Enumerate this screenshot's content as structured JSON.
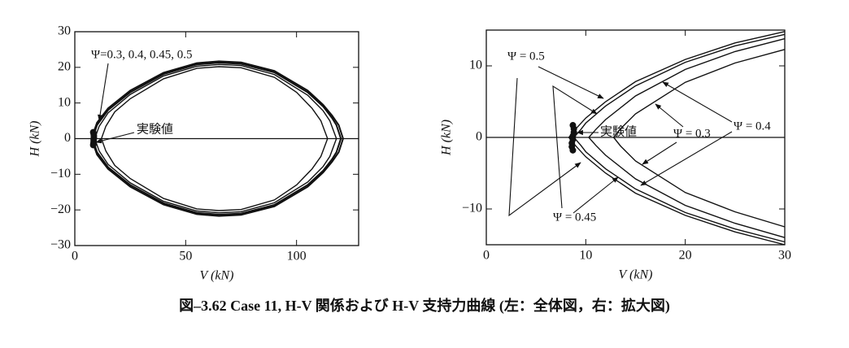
{
  "chart_data": [
    {
      "type": "line",
      "x_label": "V (kN)",
      "y_label": "H (kN)",
      "xlim": [
        0,
        128
      ],
      "xticks": [
        0,
        50,
        100
      ],
      "ylim": [
        -30,
        30
      ],
      "yticks": [
        {
          "value": -30,
          "label": "−30"
        },
        {
          "value": -20,
          "label": "−20"
        },
        {
          "value": -10,
          "label": "−10"
        },
        0,
        10,
        20,
        30
      ],
      "zero_line": true,
      "series": [
        {
          "color": "#111111",
          "x": [
            7.5,
            10,
            15,
            25,
            40,
            55,
            65,
            75,
            90,
            105,
            112,
            116,
            119,
            121,
            119,
            116,
            112,
            105,
            90,
            75,
            65,
            55,
            40,
            25,
            15,
            10,
            7.5
          ],
          "values": [
            0,
            4.5,
            8.5,
            13.5,
            18.5,
            21.2,
            21.7,
            21.4,
            19,
            13.5,
            9.5,
            6.5,
            3.8,
            0,
            -3.8,
            -6.5,
            -9.5,
            -13.5,
            -19,
            -21.4,
            -21.7,
            -21.2,
            -18.5,
            -13.5,
            -8.5,
            -4.5,
            0
          ]
        },
        {
          "color": "#111111",
          "x": [
            8,
            10,
            15,
            25,
            40,
            55,
            65,
            75,
            90,
            105,
            112,
            116,
            118,
            120,
            118,
            116,
            112,
            105,
            90,
            75,
            65,
            55,
            40,
            25,
            15,
            10,
            8
          ],
          "values": [
            0,
            3.8,
            8,
            13,
            18.1,
            20.8,
            21.3,
            21,
            18.6,
            13,
            9,
            5.8,
            3.8,
            0,
            -3.8,
            -5.8,
            -9,
            -13,
            -18.6,
            -21,
            -21.3,
            -20.8,
            -18.1,
            -13,
            -8,
            -3.8,
            0
          ]
        },
        {
          "color": "#111111",
          "x": [
            9,
            11,
            15,
            25,
            40,
            55,
            65,
            75,
            90,
            105,
            112,
            115,
            118,
            115,
            112,
            105,
            90,
            75,
            65,
            55,
            40,
            25,
            15,
            11,
            9
          ],
          "values": [
            0,
            3.5,
            7.2,
            12.4,
            17.6,
            20.3,
            20.8,
            20.5,
            18,
            12.2,
            7.8,
            5,
            0,
            -5,
            -7.8,
            -12.2,
            -18,
            -20.5,
            -20.8,
            -20.3,
            -17.6,
            -12.4,
            -7.2,
            -3.5,
            0
          ]
        },
        {
          "color": "#111111",
          "x": [
            12,
            14,
            18,
            25,
            40,
            55,
            65,
            75,
            90,
            100,
            107,
            111,
            114,
            111,
            107,
            100,
            90,
            75,
            65,
            55,
            40,
            25,
            18,
            14,
            12
          ],
          "values": [
            0,
            3.5,
            7.5,
            11.2,
            16.8,
            19.7,
            20.2,
            19.9,
            17.2,
            13,
            8.5,
            5,
            0,
            -5,
            -8.5,
            -13,
            -17.2,
            -19.9,
            -20.2,
            -19.7,
            -16.8,
            -11.2,
            -7.5,
            -3.5,
            0
          ]
        }
      ],
      "experiment": {
        "color": "#111111",
        "x": [
          8.3,
          8.5,
          8.6,
          8.6,
          8.5,
          8.5,
          8.4,
          8.3
        ],
        "values": [
          1.8,
          1.3,
          0.8,
          0.3,
          -0.3,
          -0.8,
          -1.3,
          -1.8
        ]
      },
      "annotations": [
        "Ψ=0.3, 0.4, 0.45, 0.5",
        "実験値"
      ]
    },
    {
      "type": "line",
      "x_label": "V (kN)",
      "y_label": "H (kN)",
      "xlim": [
        0,
        30
      ],
      "xticks": [
        0,
        10,
        20,
        30
      ],
      "ylim": [
        -15,
        15
      ],
      "yticks": [
        {
          "value": -10,
          "label": "−10"
        },
        0,
        10
      ],
      "zero_line": true,
      "series": [
        {
          "color": "#111111",
          "x": [
            30,
            25,
            20,
            15,
            12,
            10,
            9,
            8.3,
            9,
            10,
            12,
            15,
            20,
            25,
            30
          ],
          "values": [
            14.8,
            13.2,
            10.9,
            7.8,
            5,
            2.7,
            1.2,
            0,
            -1.2,
            -2.7,
            -5,
            -7.8,
            -10.9,
            -13.2,
            -15
          ]
        },
        {
          "color": "#111111",
          "x": [
            30,
            25,
            20,
            15,
            12,
            10,
            9.5,
            8.8,
            9.5,
            10,
            12,
            15,
            20,
            25,
            30
          ],
          "values": [
            14.4,
            12.8,
            10.5,
            7.2,
            4.4,
            2,
            1.1,
            0,
            -1.1,
            -2,
            -4.4,
            -7.2,
            -10.5,
            -12.8,
            -14.6
          ]
        },
        {
          "color": "#111111",
          "x": [
            30,
            25,
            20,
            15,
            12,
            11,
            10.3,
            11,
            12,
            15,
            20,
            25,
            30
          ],
          "values": [
            13.8,
            12,
            9.5,
            5.8,
            2.5,
            1.1,
            0,
            -1.1,
            -2.5,
            -5.8,
            -9.5,
            -12,
            -14
          ]
        },
        {
          "color": "#111111",
          "x": [
            30,
            25,
            20,
            15,
            13.5,
            12.8,
            13.5,
            15,
            20,
            25,
            30
          ],
          "values": [
            12.3,
            10.4,
            7.7,
            3.3,
            1.2,
            0,
            -1.2,
            -3.3,
            -7.7,
            -10.4,
            -12.5
          ]
        }
      ],
      "experiment": {
        "color": "#111111",
        "x": [
          8.7,
          8.8,
          8.8,
          8.7,
          8.7,
          8.6,
          8.6,
          8.7
        ],
        "values": [
          1.7,
          1.2,
          0.7,
          0.2,
          -0.3,
          -0.8,
          -1.3,
          -1.8
        ]
      },
      "annotations": [
        "Ψ = 0.5",
        "Ψ = 0.45",
        "実験値",
        "Ψ = 0.3",
        "Ψ = 0.4"
      ]
    }
  ],
  "caption": "図–3.62  Case 11, H-V 関係および H-V 支持力曲線 (左：全体図，右：拡大図)"
}
